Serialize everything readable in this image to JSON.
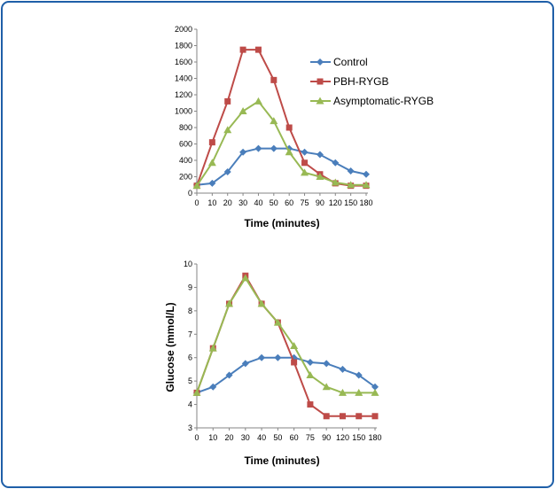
{
  "colors": {
    "Control": "#4a7ebb",
    "PBH-RYGB": "#be4b48",
    "Asymptomatic-RYGB": "#98b954",
    "frame": "#1f5fa8"
  },
  "chart_data": [
    {
      "type": "line",
      "title": "",
      "xlabel": "Time (minutes)",
      "ylabel": "",
      "categories": [
        "0",
        "10",
        "20",
        "30",
        "40",
        "50",
        "60",
        "75",
        "90",
        "120",
        "150",
        "180"
      ],
      "yticks": [
        "0",
        "200",
        "400",
        "600",
        "800",
        "1000",
        "1200",
        "1400",
        "1600",
        "1800",
        "2000"
      ],
      "ylim": [
        0,
        2000
      ],
      "legend": "top-right",
      "grid": false,
      "series": [
        {
          "name": "Control",
          "color": "#4a7ebb",
          "marker": "diamond",
          "values": [
            100,
            120,
            260,
            500,
            545,
            545,
            545,
            500,
            470,
            370,
            270,
            230
          ]
        },
        {
          "name": "PBH-RYGB",
          "color": "#be4b48",
          "marker": "square",
          "values": [
            90,
            620,
            1120,
            1750,
            1750,
            1380,
            800,
            370,
            230,
            120,
            90,
            90
          ]
        },
        {
          "name": "Asymptomatic-RYGB",
          "color": "#98b954",
          "marker": "triangle",
          "values": [
            90,
            370,
            770,
            1000,
            1120,
            880,
            500,
            250,
            200,
            130,
            100,
            100
          ]
        }
      ]
    },
    {
      "type": "line",
      "title": "",
      "xlabel": "Time (minutes)",
      "ylabel": "Glucose (mmol/L)",
      "categories": [
        "0",
        "10",
        "20",
        "30",
        "40",
        "50",
        "60",
        "75",
        "90",
        "120",
        "150",
        "180"
      ],
      "yticks": [
        "3",
        "4",
        "5",
        "6",
        "7",
        "8",
        "9",
        "10"
      ],
      "ylim": [
        3,
        10
      ],
      "grid": false,
      "series": [
        {
          "name": "Control",
          "color": "#4a7ebb",
          "marker": "diamond",
          "values": [
            4.5,
            4.75,
            5.25,
            5.75,
            6.0,
            6.0,
            6.0,
            5.8,
            5.75,
            5.5,
            5.25,
            4.75
          ]
        },
        {
          "name": "PBH-RYGB",
          "color": "#be4b48",
          "marker": "square",
          "values": [
            4.5,
            6.4,
            8.3,
            9.5,
            8.3,
            7.5,
            5.8,
            4.0,
            3.5,
            3.5,
            3.5,
            3.5
          ]
        },
        {
          "name": "Asymptomatic-RYGB",
          "color": "#98b954",
          "marker": "triangle",
          "values": [
            4.5,
            6.4,
            8.3,
            9.4,
            8.3,
            7.5,
            6.5,
            5.25,
            4.75,
            4.5,
            4.5,
            4.5
          ]
        }
      ]
    }
  ]
}
